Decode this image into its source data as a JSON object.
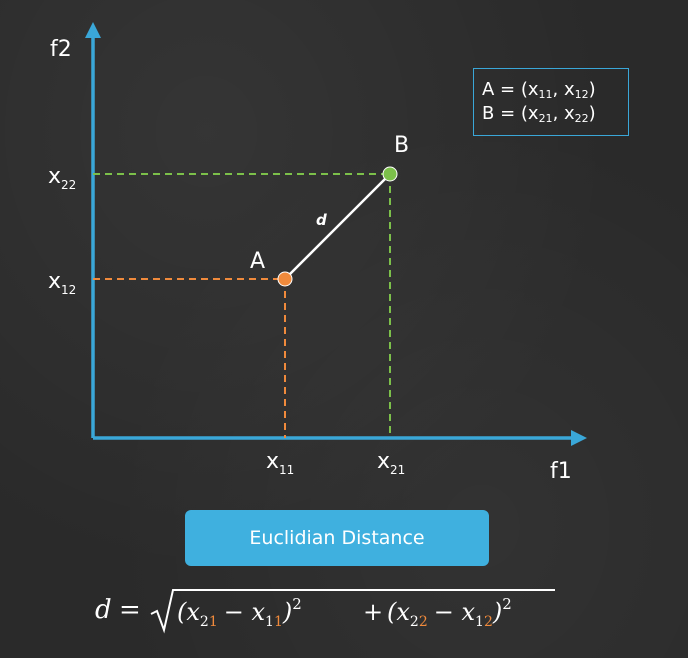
{
  "axes": {
    "y_label": "f2",
    "x_label": "f1",
    "y_ticks": [
      {
        "main": "x",
        "sub": "22"
      },
      {
        "main": "x",
        "sub": "12"
      }
    ],
    "x_ticks": [
      {
        "main": "x",
        "sub": "11"
      },
      {
        "main": "x",
        "sub": "21"
      }
    ]
  },
  "points": {
    "a_label": "A",
    "b_label": "B",
    "distance_label": "d"
  },
  "legend": {
    "a_prefix": "A = (x",
    "a_sub1": "11",
    "a_mid": ", x",
    "a_sub2": "12",
    "a_suffix": ")",
    "b_prefix": "B = (x",
    "b_sub1": "21",
    "b_mid": ", x",
    "b_sub2": "22",
    "b_suffix": ")"
  },
  "button": {
    "label": "Euclidian Distance"
  },
  "formula": {
    "d": "d",
    "equals": "=",
    "open1": "(x",
    "sub21a": "2",
    "sub21b": "1",
    "minus1": "− x",
    "sub11a": "1",
    "sub11b": "1",
    "close1": ")",
    "sq1": "2",
    "plus": "+",
    "open2": "(x",
    "sub22a": "2",
    "sub22b": "2",
    "minus2": "− x",
    "sub12a": "1",
    "sub12b": "2",
    "close2": ")",
    "sq2": "2"
  },
  "colors": {
    "axis": "#3aa7d8",
    "point_a": "#f08a3c",
    "point_b": "#7cc04a",
    "highlight": "#f08a3c",
    "button": "#3fb0df"
  }
}
